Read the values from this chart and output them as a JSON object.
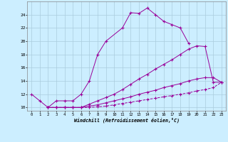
{
  "s1_x": [
    0,
    1,
    2,
    3,
    4,
    5,
    6,
    7,
    8,
    9,
    11,
    12,
    13,
    14,
    15,
    16,
    17,
    18,
    19
  ],
  "s1_y": [
    12,
    11,
    10,
    11,
    11,
    11,
    12,
    14,
    18,
    20,
    22,
    24.3,
    24.2,
    25,
    24,
    23,
    22.5,
    22,
    19.7
  ],
  "s2_x": [
    2,
    3,
    4,
    5,
    6,
    7,
    8,
    9,
    10,
    11,
    12,
    13,
    14,
    15,
    16,
    17,
    18,
    19,
    20,
    21,
    22,
    23
  ],
  "s2_y": [
    10,
    10,
    10,
    10,
    10,
    10.5,
    11,
    11.5,
    12,
    12.7,
    13.5,
    14.3,
    15,
    15.8,
    16.5,
    17.2,
    18,
    18.8,
    19.3,
    19.2,
    13.8,
    13.8
  ],
  "s3_x": [
    2,
    3,
    4,
    5,
    6,
    7,
    8,
    9,
    10,
    11,
    12,
    13,
    14,
    15,
    16,
    17,
    18,
    19,
    20,
    21,
    22,
    23
  ],
  "s3_y": [
    10,
    10,
    10,
    10,
    10,
    10.2,
    10.4,
    10.7,
    11,
    11.3,
    11.6,
    12,
    12.3,
    12.6,
    13,
    13.3,
    13.6,
    14,
    14.3,
    14.5,
    14.5,
    13.8
  ],
  "s4_x": [
    2,
    3,
    4,
    5,
    6,
    7,
    8,
    9,
    10,
    11,
    12,
    13,
    14,
    15,
    16,
    17,
    18,
    19,
    20,
    21,
    22,
    23
  ],
  "s4_y": [
    10,
    10,
    10,
    10,
    10,
    10,
    10.1,
    10.2,
    10.4,
    10.6,
    10.8,
    11,
    11.2,
    11.4,
    11.6,
    11.8,
    12,
    12.2,
    12.5,
    12.7,
    13.0,
    13.8
  ],
  "color": "#990099",
  "xlim": [
    -0.5,
    23.5
  ],
  "ylim": [
    9.5,
    26
  ],
  "yticks": [
    10,
    12,
    14,
    16,
    18,
    20,
    22,
    24
  ],
  "xticks": [
    0,
    1,
    2,
    3,
    4,
    5,
    6,
    7,
    8,
    9,
    10,
    11,
    12,
    13,
    14,
    15,
    16,
    17,
    18,
    19,
    20,
    21,
    22,
    23
  ],
  "xlabel": "Windchill (Refroidissement éolien,°C)",
  "bg_color": "#cceeff",
  "grid_color": "#aaccdd"
}
